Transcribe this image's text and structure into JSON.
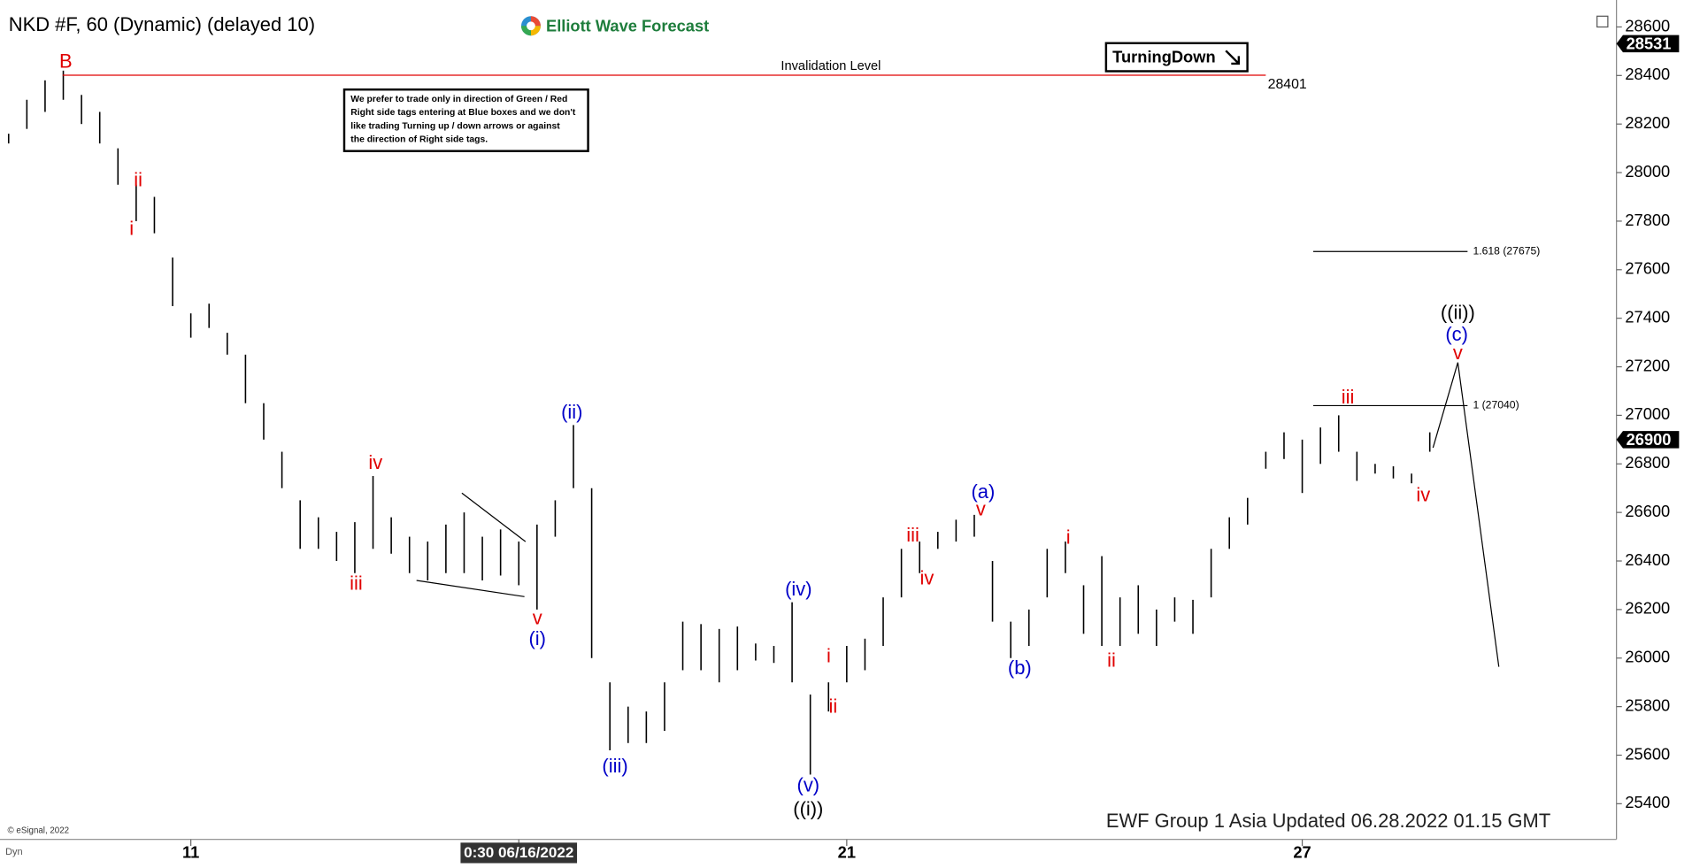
{
  "chart_data": {
    "type": "ohlc",
    "title": "NKD #F, 60 (Dynamic) (delayed 10)",
    "source": "Elliott Wave Forecast",
    "categories": [
      null,
      null,
      null,
      null,
      null,
      null,
      null,
      null,
      null,
      null,
      "11",
      null,
      null,
      null,
      null,
      null,
      null,
      null,
      null,
      null,
      null,
      null,
      null,
      null,
      null,
      null,
      null,
      null,
      "0:30 06/16/2022",
      null,
      null,
      null,
      null,
      null,
      null,
      null,
      null,
      null,
      null,
      null,
      null,
      null,
      null,
      null,
      null,
      null,
      "21",
      null,
      null,
      null,
      null,
      null,
      null,
      null,
      null,
      null,
      null,
      null,
      null,
      null,
      null,
      null,
      null,
      null,
      null,
      null,
      null,
      null,
      null,
      null,
      null,
      "27",
      null,
      null,
      null,
      null,
      null,
      null,
      null
    ],
    "high": [
      28160,
      28300,
      28380,
      28420,
      28320,
      28250,
      28100,
      27950,
      27900,
      27650,
      27420,
      27460,
      27340,
      27250,
      27050,
      26850,
      26650,
      26580,
      26520,
      26560,
      26750,
      26580,
      26500,
      26480,
      26550,
      26600,
      26500,
      26530,
      26480,
      26550,
      26650,
      26960,
      26700,
      25900,
      25800,
      25780,
      25900,
      26150,
      26140,
      26120,
      26130,
      26060,
      26050,
      26230,
      25850,
      25900,
      26050,
      26080,
      26250,
      26450,
      26480,
      26520,
      26570,
      26590,
      26400,
      26150,
      26200,
      26450,
      26480,
      26300,
      26420,
      26250,
      26300,
      26200,
      26250,
      26240,
      26450,
      26580,
      26660,
      26850,
      26930,
      26900,
      26950,
      27000,
      26850,
      26800,
      26790,
      26760,
      26930
    ],
    "low": [
      28120,
      28180,
      28250,
      28300,
      28200,
      28120,
      27950,
      27800,
      27750,
      27450,
      27320,
      27360,
      27250,
      27050,
      26900,
      26700,
      26450,
      26450,
      26400,
      26350,
      26450,
      26430,
      26350,
      26320,
      26350,
      26350,
      26320,
      26340,
      26300,
      26200,
      26500,
      26700,
      26000,
      25620,
      25650,
      25650,
      25700,
      25950,
      25950,
      25900,
      25950,
      25990,
      25980,
      25900,
      25520,
      25780,
      25900,
      25950,
      26050,
      26250,
      26350,
      26450,
      26480,
      26500,
      26150,
      26000,
      26050,
      26250,
      26350,
      26100,
      26050,
      26050,
      26100,
      26050,
      26150,
      26100,
      26250,
      26450,
      26550,
      26780,
      26820,
      26680,
      26800,
      26850,
      26730,
      26760,
      26740,
      26720,
      26850
    ],
    "color": "#000000",
    "ylim": [
      25253,
      28711
    ],
    "yticks": [
      25400,
      25600,
      25800,
      26000,
      26200,
      26400,
      26600,
      26800,
      27000,
      27200,
      27400,
      27600,
      27800,
      28000,
      28200,
      28400,
      28600
    ],
    "invalidation": {
      "label": "Invalidation Level",
      "value": 28401,
      "color": "#e00000"
    },
    "fib_levels": [
      {
        "value": 27675,
        "label": "1.618 (27675)"
      },
      {
        "value": 27040,
        "label": "1 (27040)"
      }
    ],
    "price_tags": [
      {
        "value": 28531,
        "color": "#000000"
      },
      {
        "value": 26900,
        "color": "#000000"
      }
    ],
    "signal": "TurningDown",
    "note": [
      "We prefer to trade only in direction of Green / Red",
      "Right side tags entering at Blue boxes and we don't",
      "like trading Turning up / down arrows or against",
      "the direction of Right side tags."
    ],
    "annotations": [
      {
        "text": "B",
        "color": "#e00000"
      },
      {
        "text": "ii",
        "color": "#e00000"
      },
      {
        "text": "i",
        "color": "#e00000"
      },
      {
        "text": "iv",
        "color": "#e00000"
      },
      {
        "text": "iii",
        "color": "#e00000"
      },
      {
        "text": "v",
        "color": "#e00000"
      },
      {
        "text": "(i)",
        "color": "#0000c8"
      },
      {
        "text": "(ii)",
        "color": "#0000c8"
      },
      {
        "text": "(iii)",
        "color": "#0000c8"
      },
      {
        "text": "(iv)",
        "color": "#0000c8"
      },
      {
        "text": "(v)",
        "color": "#0000c8"
      },
      {
        "text": "((i))",
        "color": "#000000"
      },
      {
        "text": "i",
        "color": "#e00000"
      },
      {
        "text": "ii",
        "color": "#e00000"
      },
      {
        "text": "iii",
        "color": "#e00000"
      },
      {
        "text": "iv",
        "color": "#e00000"
      },
      {
        "text": "(a)",
        "color": "#0000c8"
      },
      {
        "text": "v",
        "color": "#e00000"
      },
      {
        "text": "(b)",
        "color": "#0000c8"
      },
      {
        "text": "i",
        "color": "#e00000"
      },
      {
        "text": "ii",
        "color": "#e00000"
      },
      {
        "text": "iii",
        "color": "#e00000"
      },
      {
        "text": "iv",
        "color": "#e00000"
      },
      {
        "text": "((ii))",
        "color": "#000000"
      },
      {
        "text": "(c)",
        "color": "#0000c8"
      },
      {
        "text": "v",
        "color": "#e00000"
      }
    ],
    "footer": "EWF Group 1 Asia Updated 06.28.2022 01.15 GMT",
    "copyright": "© eSignal, 2022",
    "corner": "Dyn"
  }
}
